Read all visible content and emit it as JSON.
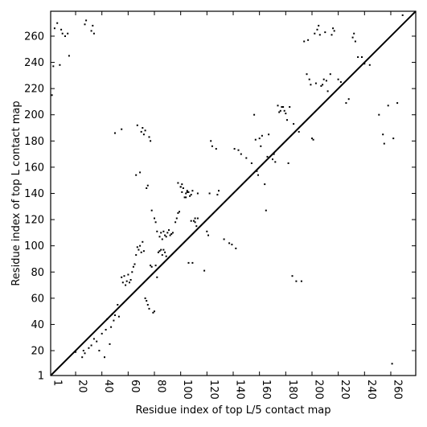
{
  "chart_data": {
    "type": "scatter",
    "title": "",
    "xlabel": "Residue index of top L/5 contact map",
    "ylabel": "Residue index of top L contact map",
    "xlim": [
      1,
      279
    ],
    "ylim": [
      1,
      279
    ],
    "x_ticks": [
      1,
      20,
      40,
      60,
      80,
      100,
      120,
      140,
      160,
      180,
      200,
      220,
      240,
      260
    ],
    "y_ticks": [
      1,
      20,
      40,
      60,
      80,
      100,
      120,
      140,
      160,
      180,
      200,
      220,
      240,
      260
    ],
    "x_tick_rotation": -90,
    "diagonal": {
      "from": [
        1,
        1
      ],
      "to": [
        279,
        279
      ]
    },
    "grid": false,
    "legend": "none",
    "marker_color": "#000000",
    "lower_triangle_points": [
      [
        2,
        215
      ],
      [
        3,
        237
      ],
      [
        4,
        266
      ],
      [
        6,
        270
      ],
      [
        8,
        238
      ],
      [
        9,
        265
      ],
      [
        10,
        262
      ],
      [
        12,
        260
      ],
      [
        14,
        262
      ],
      [
        15,
        245
      ],
      [
        27,
        269
      ],
      [
        28,
        272
      ],
      [
        32,
        264
      ],
      [
        33,
        268
      ],
      [
        34,
        262
      ],
      [
        50,
        186
      ],
      [
        55,
        189
      ],
      [
        66,
        154
      ],
      [
        67,
        192
      ],
      [
        69,
        156
      ],
      [
        70,
        187
      ],
      [
        71,
        190
      ],
      [
        72,
        185
      ],
      [
        73,
        188
      ],
      [
        74,
        144
      ],
      [
        75,
        146
      ],
      [
        76,
        183
      ],
      [
        77,
        180
      ],
      [
        78,
        127
      ],
      [
        80,
        121
      ],
      [
        81,
        118
      ],
      [
        82,
        111
      ],
      [
        84,
        107
      ],
      [
        85,
        110
      ],
      [
        86,
        105
      ],
      [
        87,
        111
      ],
      [
        88,
        108
      ],
      [
        89,
        107
      ],
      [
        98,
        148
      ],
      [
        100,
        145
      ],
      [
        101,
        141
      ],
      [
        104,
        137
      ],
      [
        105,
        141
      ],
      [
        106,
        87
      ],
      [
        108,
        119
      ],
      [
        109,
        87
      ],
      [
        111,
        118
      ],
      [
        113,
        140
      ],
      [
        118,
        81
      ],
      [
        120,
        111
      ],
      [
        121,
        108
      ],
      [
        122,
        140
      ],
      [
        123,
        180
      ],
      [
        124,
        176
      ],
      [
        127,
        174
      ],
      [
        128,
        139
      ],
      [
        129,
        142
      ],
      [
        133,
        105
      ],
      [
        137,
        102
      ],
      [
        139,
        101
      ],
      [
        141,
        174
      ],
      [
        142,
        98
      ],
      [
        144,
        173
      ],
      [
        146,
        170
      ],
      [
        150,
        167
      ],
      [
        154,
        163
      ],
      [
        156,
        200
      ],
      [
        157,
        181
      ],
      [
        158,
        157
      ],
      [
        159,
        154
      ],
      [
        160,
        182
      ],
      [
        161,
        176
      ],
      [
        162,
        184
      ],
      [
        164,
        147
      ],
      [
        165,
        127
      ],
      [
        166,
        168
      ],
      [
        167,
        185
      ],
      [
        170,
        166
      ],
      [
        171,
        170
      ],
      [
        172,
        164
      ],
      [
        174,
        207
      ],
      [
        175,
        202
      ],
      [
        176,
        203
      ],
      [
        177,
        206
      ],
      [
        178,
        206
      ],
      [
        179,
        203
      ],
      [
        180,
        201
      ],
      [
        181,
        196
      ],
      [
        182,
        163
      ],
      [
        183,
        206
      ],
      [
        185,
        77
      ],
      [
        186,
        193
      ],
      [
        188,
        73
      ],
      [
        190,
        187
      ],
      [
        192,
        73
      ],
      [
        194,
        256
      ],
      [
        196,
        231
      ],
      [
        197,
        257
      ],
      [
        198,
        227
      ],
      [
        199,
        223
      ],
      [
        200,
        182
      ],
      [
        201,
        181
      ],
      [
        202,
        262
      ],
      [
        203,
        224
      ],
      [
        204,
        265
      ],
      [
        205,
        268
      ],
      [
        206,
        261
      ],
      [
        207,
        222
      ],
      [
        208,
        223
      ],
      [
        209,
        227
      ],
      [
        210,
        263
      ],
      [
        211,
        226
      ],
      [
        212,
        218
      ],
      [
        214,
        231
      ],
      [
        215,
        261
      ],
      [
        216,
        266
      ],
      [
        217,
        264
      ],
      [
        220,
        227
      ],
      [
        222,
        225
      ],
      [
        226,
        209
      ],
      [
        228,
        212
      ],
      [
        231,
        259
      ],
      [
        232,
        262
      ],
      [
        233,
        256
      ],
      [
        235,
        244
      ],
      [
        238,
        244
      ],
      [
        240,
        239
      ],
      [
        244,
        238
      ],
      [
        251,
        200
      ],
      [
        254,
        185
      ],
      [
        255,
        178
      ],
      [
        258,
        207
      ],
      [
        261,
        10
      ],
      [
        262,
        182
      ],
      [
        265,
        209
      ],
      [
        269,
        276
      ]
    ],
    "upper_triangle_points": [
      [
        20,
        19
      ],
      [
        25,
        15
      ],
      [
        26,
        20
      ],
      [
        27,
        18
      ],
      [
        30,
        22
      ],
      [
        32,
        24
      ],
      [
        34,
        29
      ],
      [
        36,
        27
      ],
      [
        38,
        20
      ],
      [
        40,
        33
      ],
      [
        42,
        15
      ],
      [
        43,
        36
      ],
      [
        44,
        44
      ],
      [
        46,
        25
      ],
      [
        47,
        38
      ],
      [
        48,
        48
      ],
      [
        49,
        43
      ],
      [
        50,
        47
      ],
      [
        52,
        55
      ],
      [
        53,
        46
      ],
      [
        55,
        76
      ],
      [
        56,
        72
      ],
      [
        57,
        77
      ],
      [
        58,
        70
      ],
      [
        59,
        73
      ],
      [
        60,
        78
      ],
      [
        61,
        72
      ],
      [
        62,
        74
      ],
      [
        63,
        80
      ],
      [
        64,
        84
      ],
      [
        65,
        86
      ],
      [
        66,
        93
      ],
      [
        67,
        99
      ],
      [
        68,
        97
      ],
      [
        69,
        100
      ],
      [
        70,
        95
      ],
      [
        71,
        103
      ],
      [
        72,
        96
      ],
      [
        73,
        60
      ],
      [
        74,
        58
      ],
      [
        75,
        55
      ],
      [
        76,
        52
      ],
      [
        77,
        85
      ],
      [
        78,
        84
      ],
      [
        79,
        49
      ],
      [
        80,
        50
      ],
      [
        81,
        85
      ],
      [
        82,
        76
      ],
      [
        83,
        95
      ],
      [
        84,
        96
      ],
      [
        85,
        97
      ],
      [
        86,
        93
      ],
      [
        87,
        97
      ],
      [
        88,
        95
      ],
      [
        89,
        92
      ],
      [
        90,
        110
      ],
      [
        91,
        112
      ],
      [
        92,
        108
      ],
      [
        93,
        109
      ],
      [
        94,
        110
      ],
      [
        96,
        118
      ],
      [
        97,
        121
      ],
      [
        98,
        125
      ],
      [
        99,
        126
      ],
      [
        100,
        145
      ],
      [
        101,
        147
      ],
      [
        102,
        144
      ],
      [
        103,
        137
      ],
      [
        104,
        140
      ],
      [
        105,
        142
      ],
      [
        106,
        141
      ],
      [
        107,
        138
      ],
      [
        108,
        139
      ],
      [
        109,
        142
      ],
      [
        110,
        119
      ],
      [
        111,
        121
      ],
      [
        112,
        115
      ],
      [
        113,
        121
      ]
    ]
  }
}
